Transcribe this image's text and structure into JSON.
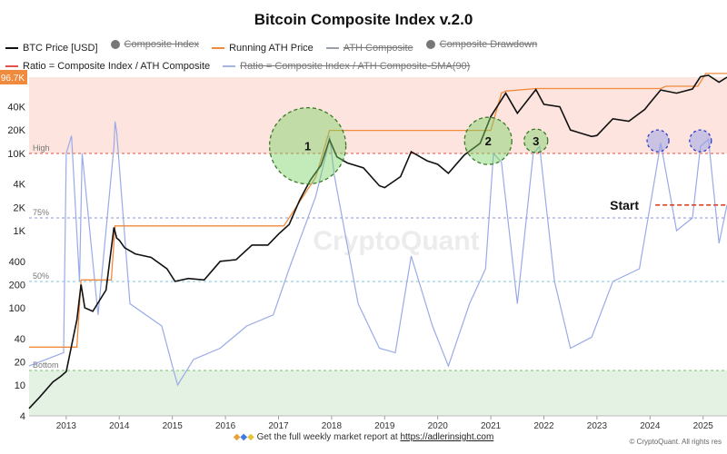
{
  "chart_data": {
    "type": "line",
    "title": "Bitcoin Composite Index v.2.0",
    "legend": [
      {
        "label": "BTC Price [USD]",
        "color": "#111111",
        "kind": "line",
        "active": true
      },
      {
        "label": "Composite Index",
        "color": "#777777",
        "kind": "dot",
        "active": false
      },
      {
        "label": "Running ATH Price",
        "color": "#f08a3c",
        "kind": "line",
        "active": true
      },
      {
        "label": "ATH Composite",
        "color": "#9aa0aa",
        "kind": "line",
        "active": false
      },
      {
        "label": "Composite Drawdown",
        "color": "#777777",
        "kind": "dot",
        "active": false
      },
      {
        "label": "Ratio = Composite Index / ATH Composite",
        "color": "#e0524a",
        "kind": "line",
        "active": true
      },
      {
        "label": "Ratio = Composite Index / ATH Composite-SMA(90)",
        "color": "#a8b4dc",
        "kind": "line",
        "active": false
      }
    ],
    "yscale": "log",
    "ylim": [
      4,
      96700
    ],
    "yticks": [
      "4",
      "10",
      "20",
      "40",
      "100",
      "200",
      "400",
      "1K",
      "2K",
      "4K",
      "10K",
      "20K",
      "40K"
    ],
    "ycurrent_label": "96.7K",
    "xlim": [
      2012.3,
      2025.45
    ],
    "xticks": [
      "2013",
      "2014",
      "2015",
      "2016",
      "2017",
      "2018",
      "2019",
      "2020",
      "2021",
      "2022",
      "2023",
      "2024",
      "2025"
    ],
    "zones": [
      {
        "label": "High",
        "value": 0.9
      },
      {
        "label": "75%",
        "value": 0.75
      },
      {
        "label": "50%",
        "value": 0.5
      },
      {
        "label": "Bottom",
        "value": 0.1
      }
    ],
    "series": [
      {
        "name": "BTC Price [USD]",
        "x": [
          2012.3,
          2012.5,
          2012.75,
          2012.9,
          2013.0,
          2013.2,
          2013.28,
          2013.35,
          2013.5,
          2013.75,
          2013.9,
          2013.95,
          2014.0,
          2014.1,
          2014.3,
          2014.6,
          2014.9,
          2015.05,
          2015.3,
          2015.6,
          2015.9,
          2016.2,
          2016.5,
          2016.8,
          2017.0,
          2017.2,
          2017.4,
          2017.6,
          2017.8,
          2017.96,
          2018.1,
          2018.3,
          2018.6,
          2018.9,
          2019.0,
          2019.3,
          2019.5,
          2019.8,
          2020.0,
          2020.2,
          2020.5,
          2020.8,
          2021.0,
          2021.28,
          2021.5,
          2021.85,
          2022.0,
          2022.3,
          2022.5,
          2022.9,
          2023.0,
          2023.3,
          2023.6,
          2023.9,
          2024.0,
          2024.2,
          2024.5,
          2024.8,
          2024.95,
          2025.1,
          2025.3,
          2025.45
        ],
        "values": [
          5,
          7,
          11,
          13,
          15,
          70,
          200,
          100,
          90,
          170,
          1100,
          800,
          750,
          600,
          500,
          450,
          320,
          220,
          240,
          230,
          400,
          420,
          650,
          650,
          900,
          1200,
          2500,
          4500,
          7000,
          15000,
          9000,
          7500,
          6500,
          3800,
          3600,
          5000,
          10500,
          8000,
          7200,
          5500,
          9500,
          13500,
          30000,
          60000,
          33000,
          67000,
          43000,
          40000,
          20000,
          16500,
          17000,
          28000,
          26000,
          37000,
          45000,
          66000,
          60000,
          68000,
          98000,
          102000,
          83000,
          96700
        ]
      },
      {
        "name": "Running ATH Price",
        "x": [
          2012.3,
          2013.1,
          2013.2,
          2013.28,
          2013.85,
          2013.92,
          2017.1,
          2017.7,
          2017.96,
          2021.0,
          2021.2,
          2021.28,
          2021.86,
          2024.2,
          2024.3,
          2024.9,
          2025.05,
          2025.45
        ],
        "values": [
          31,
          31,
          31,
          230,
          230,
          1150,
          1150,
          4900,
          19800,
          19800,
          60000,
          64000,
          69000,
          69000,
          73800,
          73800,
          108000,
          108000
        ]
      },
      {
        "name": "Ratio = Composite Index / ATH Composite",
        "x": [
          2012.3,
          2012.95,
          2013.0,
          2013.1,
          2013.25,
          2013.3,
          2013.6,
          2013.9,
          2013.92,
          2013.95,
          2014.2,
          2014.8,
          2015.0,
          2015.1,
          2015.4,
          2015.9,
          2016.4,
          2016.9,
          2017.2,
          2017.5,
          2017.7,
          2017.9,
          2017.96,
          2018.05,
          2018.5,
          2018.9,
          2019.2,
          2019.5,
          2019.9,
          2020.2,
          2020.6,
          2020.9,
          2021.05,
          2021.2,
          2021.5,
          2021.8,
          2021.92,
          2022.2,
          2022.5,
          2022.9,
          2023.3,
          2023.8,
          2024.1,
          2024.2,
          2024.5,
          2024.8,
          2024.95,
          2025.1,
          2025.3,
          2025.45
        ],
        "values": [
          0.12,
          0.18,
          0.9,
          0.95,
          0.5,
          0.9,
          0.35,
          0.92,
          0.99,
          0.96,
          0.4,
          0.3,
          0.12,
          0.06,
          0.15,
          0.2,
          0.3,
          0.35,
          0.55,
          0.72,
          0.8,
          0.9,
          0.95,
          0.85,
          0.4,
          0.2,
          0.18,
          0.6,
          0.3,
          0.12,
          0.4,
          0.55,
          0.9,
          0.88,
          0.4,
          0.9,
          0.92,
          0.5,
          0.2,
          0.25,
          0.5,
          0.55,
          0.85,
          0.93,
          0.7,
          0.75,
          0.92,
          0.94,
          0.65,
          0.78
        ]
      }
    ],
    "annotations": [
      {
        "label": "1",
        "x": 2017.55,
        "y": 12500
      },
      {
        "label": "2",
        "x": 2020.95,
        "y": 14500
      },
      {
        "label": "3",
        "x": 2021.85,
        "y": 14500
      },
      {
        "label": "",
        "x": 2024.15,
        "y": 14500
      },
      {
        "label": "",
        "x": 2024.95,
        "y": 14500
      }
    ],
    "start_label": "Start",
    "start_ratio": 0.78,
    "watermark": "CryptoQuant"
  },
  "footer": {
    "text": "Get the full weekly market report at",
    "link": "https://adlerinsight.com",
    "copyright": "© CryptoQuant. All rights res"
  }
}
